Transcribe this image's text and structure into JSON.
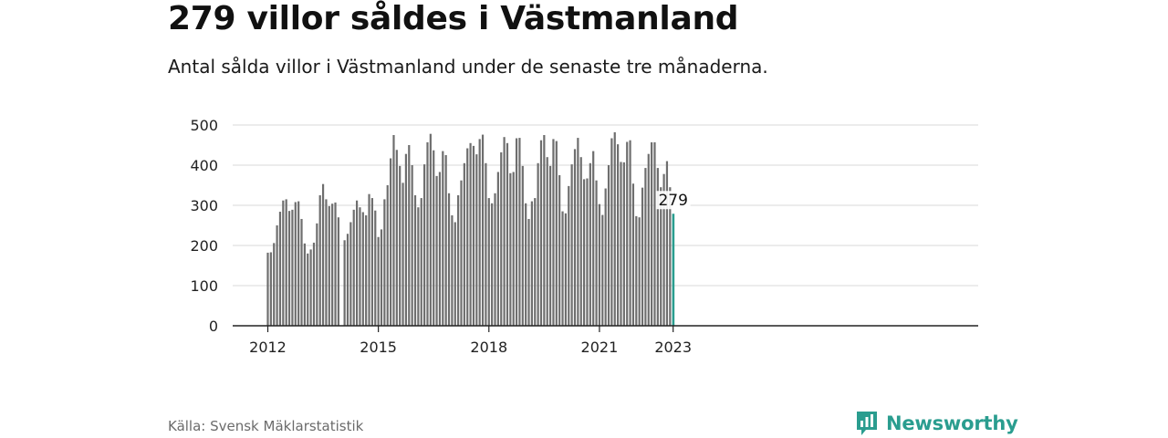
{
  "title": "279 villor såldes i Västmanland",
  "subtitle": "Antal sålda villor i Västmanland under de senaste tre månaderna.",
  "source": "Källa: Svensk Mäklarstatistik",
  "brand": {
    "name": "Newsworthy",
    "icon": "newsworthy-logo-icon",
    "color": "#2a9d8f"
  },
  "colors": {
    "bar": "#6e6e6e",
    "highlight": "#2a9d8f",
    "grid": "#d9d9d9",
    "axis": "#222222"
  },
  "chart_data": {
    "type": "bar",
    "x_start": "2012-01",
    "x_ticks": [
      "2012",
      "2015",
      "2018",
      "2021",
      "2023"
    ],
    "y_ticks": [
      "0",
      "100",
      "200",
      "300",
      "400",
      "500"
    ],
    "ylim": [
      0,
      500
    ],
    "grid": true,
    "highlight_label": "279",
    "values": [
      182,
      183,
      206,
      250,
      284,
      312,
      315,
      286,
      289,
      308,
      310,
      266,
      205,
      180,
      190,
      207,
      255,
      325,
      353,
      315,
      298,
      304,
      307,
      270,
      null,
      213,
      229,
      258,
      289,
      312,
      295,
      283,
      275,
      328,
      318,
      287,
      221,
      240,
      315,
      350,
      417,
      475,
      438,
      398,
      356,
      428,
      450,
      400,
      325,
      295,
      318,
      402,
      457,
      478,
      437,
      373,
      383,
      435,
      425,
      330,
      275,
      258,
      325,
      362,
      405,
      442,
      455,
      448,
      427,
      465,
      476,
      405,
      318,
      305,
      330,
      383,
      432,
      470,
      455,
      380,
      383,
      467,
      468,
      398,
      305,
      266,
      310,
      318,
      405,
      462,
      475,
      420,
      398,
      465,
      460,
      375,
      285,
      280,
      348,
      402,
      440,
      468,
      420,
      365,
      367,
      405,
      435,
      362,
      303,
      276,
      342,
      400,
      467,
      482,
      452,
      408,
      407,
      458,
      462,
      354,
      273,
      270,
      344,
      393,
      428,
      457,
      457,
      393,
      345,
      378,
      410,
      345,
      279
    ]
  }
}
